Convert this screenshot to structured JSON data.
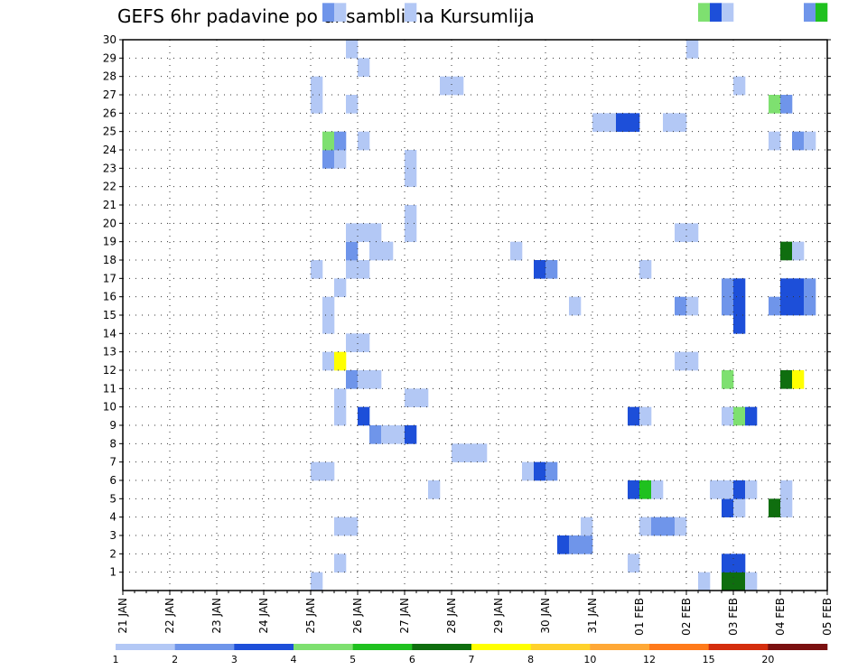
{
  "chart_data": {
    "type": "heatmap",
    "title": "GEFS 6hr padavine po ansamblima Kursumlija",
    "x_ticks": [
      "21 JAN",
      "22 JAN",
      "23 JAN",
      "24 JAN",
      "25 JAN",
      "26 JAN",
      "27 JAN",
      "28 JAN",
      "29 JAN",
      "30 JAN",
      "31 JAN",
      "01 FEB",
      "02 FEB",
      "03 FEB",
      "04 FEB",
      "05 FEB"
    ],
    "y_ticks": [
      "1",
      "2",
      "3",
      "4",
      "5",
      "6",
      "7",
      "8",
      "9",
      "10",
      "11",
      "12",
      "13",
      "14",
      "15",
      "16",
      "17",
      "18",
      "19",
      "20",
      "21",
      "22",
      "23",
      "24",
      "25",
      "26",
      "27",
      "28",
      "29",
      "30"
    ],
    "x_range_days": [
      0,
      15
    ],
    "y_range_members": [
      0,
      30
    ],
    "grid": true,
    "value_bins": [
      "1",
      "2",
      "3",
      "4",
      "5",
      "6",
      "7",
      "8",
      "10",
      "12",
      "15",
      "20"
    ],
    "legend_colors": [
      "#b3c8f5",
      "#6f95ea",
      "#1d4fd9",
      "#7ee070",
      "#1fc11f",
      "#0f6e0f",
      "#ffff00",
      "#ffd12b",
      "#ffa836",
      "#ff7a1a",
      "#d42d0d",
      "#7a1010"
    ],
    "cells": [
      [
        4,
        0,
        0
      ],
      [
        12.25,
        0,
        0
      ],
      [
        12.75,
        0,
        5
      ],
      [
        13,
        0,
        5
      ],
      [
        13.25,
        0,
        0
      ],
      [
        4.5,
        1,
        0
      ],
      [
        10.75,
        1,
        0
      ],
      [
        12.75,
        1,
        2
      ],
      [
        13,
        1,
        2
      ],
      [
        9.25,
        2,
        2
      ],
      [
        9.5,
        2,
        1
      ],
      [
        9.75,
        2,
        1
      ],
      [
        4.5,
        3,
        0
      ],
      [
        4.75,
        3,
        0
      ],
      [
        9.75,
        3,
        0
      ],
      [
        11,
        3,
        0
      ],
      [
        11.25,
        3,
        1
      ],
      [
        11.5,
        3,
        1
      ],
      [
        11.75,
        3,
        0
      ],
      [
        12.75,
        4,
        2
      ],
      [
        13,
        4,
        0
      ],
      [
        13.75,
        4,
        5
      ],
      [
        14,
        4,
        0
      ],
      [
        6.5,
        5,
        0
      ],
      [
        10.75,
        5,
        2
      ],
      [
        11,
        5,
        4
      ],
      [
        11.25,
        5,
        0
      ],
      [
        12.5,
        5,
        0
      ],
      [
        12.75,
        5,
        0
      ],
      [
        13,
        5,
        2
      ],
      [
        13.25,
        5,
        0
      ],
      [
        14,
        5,
        0
      ],
      [
        4,
        6,
        0
      ],
      [
        4.25,
        6,
        0
      ],
      [
        8.5,
        6,
        0
      ],
      [
        8.75,
        6,
        2
      ],
      [
        9,
        6,
        1
      ],
      [
        7,
        7,
        0
      ],
      [
        7.25,
        7,
        0
      ],
      [
        7.5,
        7,
        0
      ],
      [
        5.25,
        8,
        1
      ],
      [
        5.5,
        8,
        0
      ],
      [
        5.75,
        8,
        0
      ],
      [
        6,
        8,
        2
      ],
      [
        4.5,
        9,
        0
      ],
      [
        5,
        9,
        2
      ],
      [
        10.75,
        9,
        2
      ],
      [
        11,
        9,
        0
      ],
      [
        12.75,
        9,
        0
      ],
      [
        13,
        9,
        3
      ],
      [
        13.25,
        9,
        2
      ],
      [
        4.5,
        10,
        0
      ],
      [
        6,
        10,
        0
      ],
      [
        6.25,
        10,
        0
      ],
      [
        4.75,
        11,
        1
      ],
      [
        5,
        11,
        0
      ],
      [
        5.25,
        11,
        0
      ],
      [
        12.75,
        11,
        3
      ],
      [
        14,
        11,
        5
      ],
      [
        14.25,
        11,
        6
      ],
      [
        4.25,
        12,
        0
      ],
      [
        4.5,
        12,
        6
      ],
      [
        11.75,
        12,
        0
      ],
      [
        12,
        12,
        0
      ],
      [
        4.75,
        13,
        0
      ],
      [
        5,
        13,
        0
      ],
      [
        4.25,
        14,
        0
      ],
      [
        13,
        14,
        2
      ],
      [
        4.25,
        15,
        0
      ],
      [
        9.5,
        15,
        0
      ],
      [
        11.75,
        15,
        1
      ],
      [
        12,
        15,
        0
      ],
      [
        12.75,
        15,
        1
      ],
      [
        13,
        15,
        2
      ],
      [
        13.75,
        15,
        1
      ],
      [
        14,
        15,
        2
      ],
      [
        14.25,
        15,
        2
      ],
      [
        14.5,
        15,
        1
      ],
      [
        4.5,
        16,
        0
      ],
      [
        12.75,
        16,
        1
      ],
      [
        13,
        16,
        2
      ],
      [
        14,
        16,
        2
      ],
      [
        14.25,
        16,
        2
      ],
      [
        14.5,
        16,
        1
      ],
      [
        4,
        17,
        0
      ],
      [
        4.75,
        17,
        0
      ],
      [
        5,
        17,
        0
      ],
      [
        8.75,
        17,
        2
      ],
      [
        9,
        17,
        1
      ],
      [
        11,
        17,
        0
      ],
      [
        4.75,
        18,
        1
      ],
      [
        5.25,
        18,
        0
      ],
      [
        5.5,
        18,
        0
      ],
      [
        8.25,
        18,
        0
      ],
      [
        14,
        18,
        5
      ],
      [
        14.25,
        18,
        0
      ],
      [
        4.75,
        19,
        0
      ],
      [
        5,
        19,
        0
      ],
      [
        5.25,
        19,
        0
      ],
      [
        6,
        19,
        0
      ],
      [
        11.75,
        19,
        0
      ],
      [
        12,
        19,
        0
      ],
      [
        6,
        20,
        0
      ],
      [
        6,
        22,
        0
      ],
      [
        4.25,
        23,
        1
      ],
      [
        4.5,
        23,
        0
      ],
      [
        6,
        23,
        0
      ],
      [
        4.25,
        24,
        3
      ],
      [
        4.5,
        24,
        1
      ],
      [
        5,
        24,
        0
      ],
      [
        13.75,
        24,
        0
      ],
      [
        14.25,
        24,
        1
      ],
      [
        14.5,
        24,
        0
      ],
      [
        10,
        25,
        0
      ],
      [
        10.25,
        25,
        0
      ],
      [
        10.5,
        25,
        2
      ],
      [
        10.75,
        25,
        2
      ],
      [
        11.5,
        25,
        0
      ],
      [
        11.75,
        25,
        0
      ],
      [
        4,
        26,
        0
      ],
      [
        4.75,
        26,
        0
      ],
      [
        13.75,
        26,
        3
      ],
      [
        14,
        26,
        1
      ],
      [
        4,
        27,
        0
      ],
      [
        6.75,
        27,
        0
      ],
      [
        7,
        27,
        0
      ],
      [
        13,
        27,
        0
      ],
      [
        5,
        28,
        0
      ],
      [
        4.75,
        29,
        0
      ],
      [
        12,
        29,
        0
      ],
      [
        4.25,
        31,
        1
      ],
      [
        4.5,
        31,
        0
      ],
      [
        6,
        31,
        0
      ],
      [
        12.25,
        31,
        3
      ],
      [
        12.5,
        31,
        2
      ],
      [
        12.75,
        31,
        0
      ],
      [
        14.5,
        31,
        1
      ],
      [
        14.75,
        31,
        4
      ]
    ]
  }
}
